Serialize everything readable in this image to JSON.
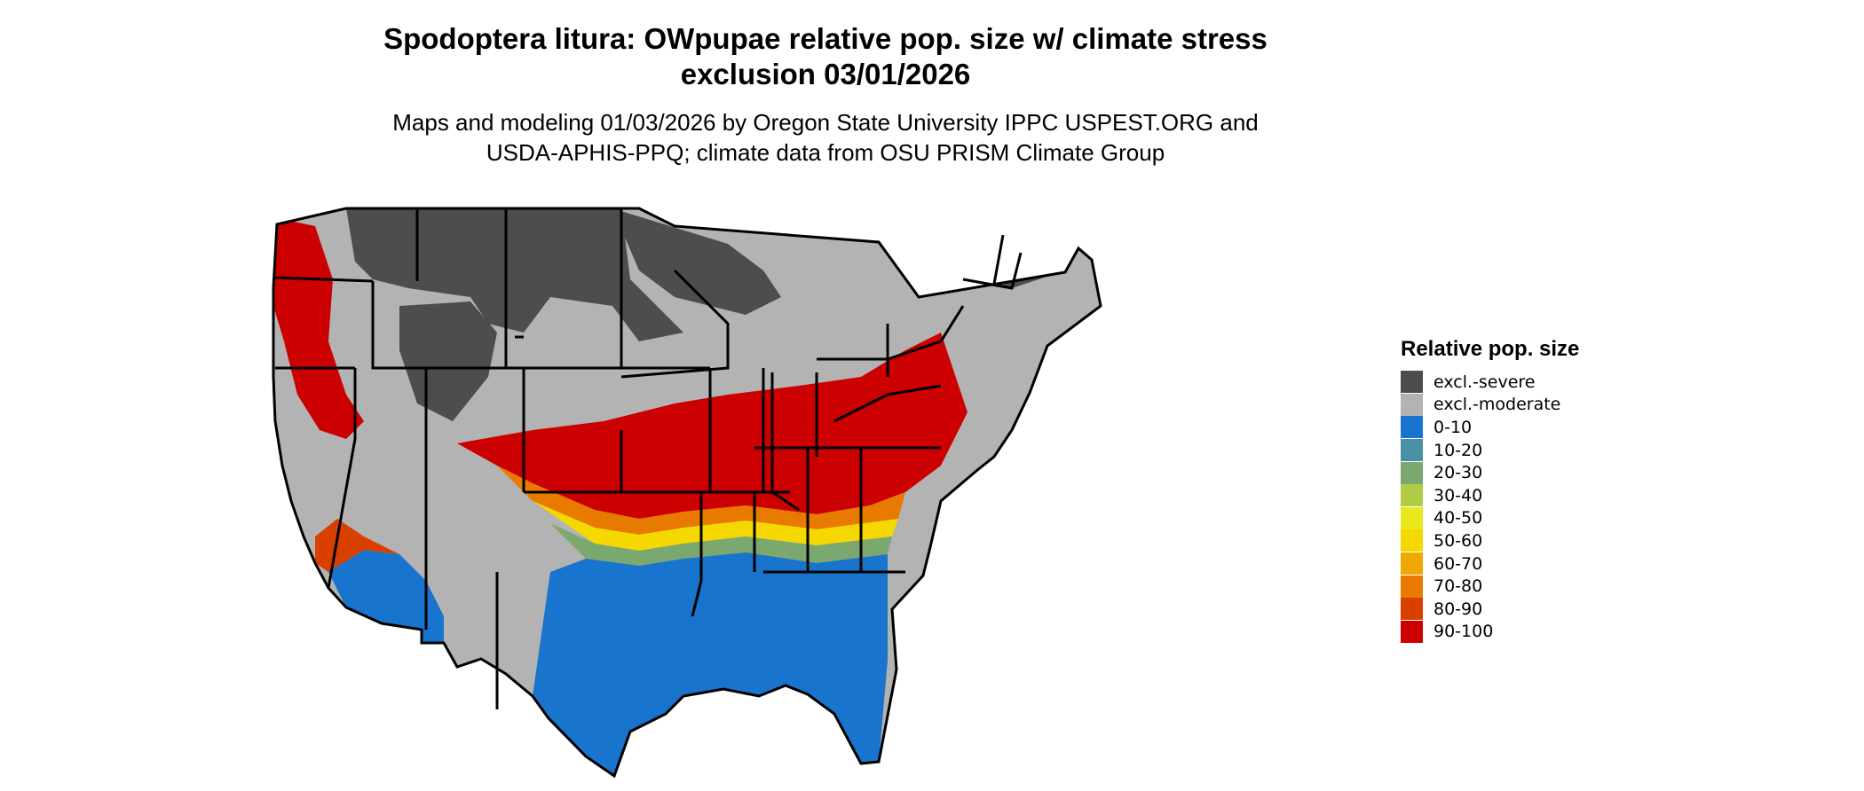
{
  "title_line1": "Spodoptera litura: OWpupae relative pop. size w/ climate stress",
  "title_line2": "exclusion 03/01/2026",
  "subtitle_line1": "Maps and modeling 01/03/2026 by Oregon State University IPPC USPEST.ORG and",
  "subtitle_line2": "USDA-APHIS-PPQ; climate data from OSU PRISM Climate Group",
  "legend": {
    "title": "Relative pop. size",
    "items": [
      {
        "label": "excl.-severe",
        "color": "#4d4d4d"
      },
      {
        "label": "excl.-moderate",
        "color": "#b3b3b3"
      },
      {
        "label": "0-10",
        "color": "#1874cd"
      },
      {
        "label": "10-20",
        "color": "#4a90a4"
      },
      {
        "label": "20-30",
        "color": "#7ba86f"
      },
      {
        "label": "30-40",
        "color": "#b0cc45"
      },
      {
        "label": "40-50",
        "color": "#e8e81a"
      },
      {
        "label": "50-60",
        "color": "#f5d800"
      },
      {
        "label": "60-70",
        "color": "#f0a800"
      },
      {
        "label": "70-80",
        "color": "#e87a00"
      },
      {
        "label": "80-90",
        "color": "#d94000"
      },
      {
        "label": "90-100",
        "color": "#cc0000"
      }
    ]
  }
}
